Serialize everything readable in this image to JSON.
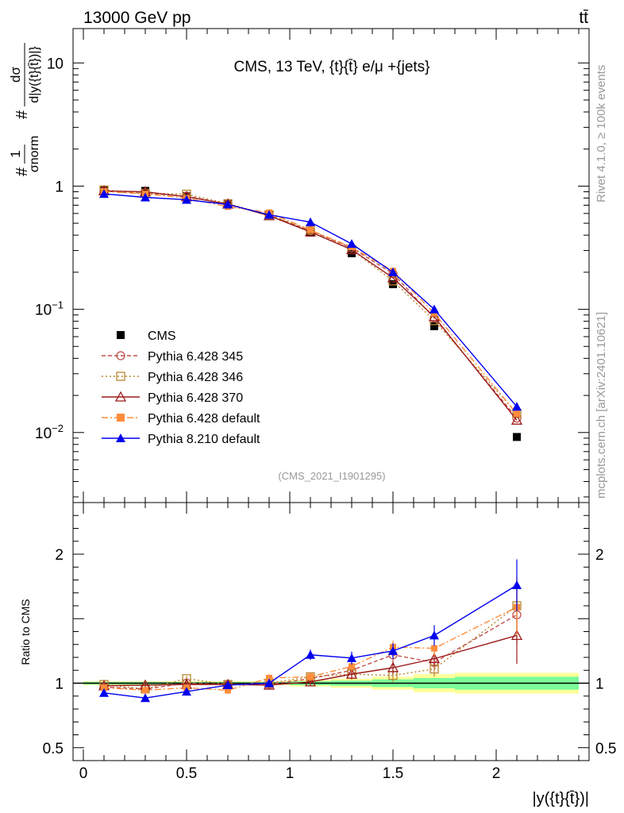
{
  "header": {
    "energy_label": "13000 GeV pp",
    "process_label": "tt̄"
  },
  "side_labels": {
    "rivet": "Rivet 4.1.0, ≥ 100k events",
    "mcplots": "mcplots.cern.ch [arXiv:2401.10621]"
  },
  "colors": {
    "cms": "#000000",
    "p345": "#c0504d",
    "p346": "#b8862f",
    "p370": "#9b1b1b",
    "p6def": "#ff8c3a",
    "p8": "#0000ee",
    "band_inner": "#7cfc9a",
    "band_outer": "#ffff99"
  },
  "chart_data": [
    {
      "type": "line",
      "panel": "main",
      "title": "CMS, 13 TeV, {t}{t̄} e/μ +{jets}",
      "analysis_id": "(CMS_2021_I1901295)",
      "ylabel_prefix": "#",
      "ylabel_frac_num": "1",
      "ylabel_frac_den": "σnorm",
      "ylabel_mid": "#",
      "ylabel_frac2_num": "dσ",
      "ylabel_frac2_den": "d|y({t}{t̄})|}",
      "yscale": "log",
      "ylim": [
        0.0027,
        19
      ],
      "xlim": [
        -0.05,
        2.45
      ],
      "y_tick_labels": [
        "10",
        "1",
        "10−1",
        "10−2"
      ],
      "x": [
        0.1,
        0.3,
        0.5,
        0.7,
        0.9,
        1.1,
        1.3,
        1.5,
        1.7,
        2.1
      ],
      "series": [
        {
          "name": "CMS",
          "key": "cms",
          "marker": "square-filled",
          "values": [
            0.935,
            0.915,
            0.83,
            0.72,
            0.585,
            0.42,
            0.285,
            0.16,
            0.073,
            0.0092
          ]
        },
        {
          "name": "Pythia 6.428 345",
          "key": "p345",
          "marker": "circle-open",
          "dash": "5,3",
          "values": [
            0.91,
            0.875,
            0.83,
            0.715,
            0.58,
            0.435,
            0.315,
            0.195,
            0.085,
            0.0131
          ]
        },
        {
          "name": "Pythia 6.428 346",
          "key": "p346",
          "marker": "square-open",
          "dash": "2,3",
          "values": [
            0.93,
            0.875,
            0.86,
            0.72,
            0.585,
            0.44,
            0.305,
            0.17,
            0.081,
            0.0143
          ]
        },
        {
          "name": "Pythia 6.428 370",
          "key": "p370",
          "marker": "triangle-open",
          "dash": "",
          "values": [
            0.915,
            0.9,
            0.82,
            0.715,
            0.575,
            0.425,
            0.305,
            0.18,
            0.087,
            0.0126
          ]
        },
        {
          "name": "Pythia 6.428 default",
          "key": "p6def",
          "marker": "square-filled",
          "dash": "8,3,2,3",
          "values": [
            0.905,
            0.865,
            0.8,
            0.68,
            0.61,
            0.44,
            0.32,
            0.205,
            0.093,
            0.0142
          ]
        },
        {
          "name": "Pythia 8.210 default",
          "key": "p8",
          "marker": "triangle-filled",
          "dash": "",
          "values": [
            0.865,
            0.81,
            0.775,
            0.71,
            0.585,
            0.51,
            0.34,
            0.2,
            0.1,
            0.0162
          ]
        }
      ]
    },
    {
      "type": "line",
      "panel": "ratio",
      "ylabel": "Ratio to CMS",
      "xlabel": "|y({t}{t̄})|",
      "ylim": [
        0.4,
        2.4
      ],
      "xlim": [
        -0.05,
        2.45
      ],
      "y_ticks": [
        0.5,
        1,
        2
      ],
      "y_tick_labels": [
        "0.5",
        "1",
        "2"
      ],
      "x_ticks": [
        0,
        0.5,
        1,
        1.5,
        2
      ],
      "x_tick_labels": [
        "0",
        "0.5",
        "1",
        "1.5",
        "2"
      ],
      "x": [
        0.1,
        0.3,
        0.5,
        0.7,
        0.9,
        1.1,
        1.3,
        1.5,
        1.7,
        2.1
      ],
      "uncertainty_band": {
        "edges": [
          0,
          0.2,
          0.4,
          0.6,
          0.8,
          1.0,
          1.2,
          1.4,
          1.6,
          1.8,
          2.4
        ],
        "inner": [
          0.01,
          0.01,
          0.01,
          0.01,
          0.01,
          0.015,
          0.02,
          0.03,
          0.04,
          0.05
        ],
        "outer": [
          0.015,
          0.015,
          0.015,
          0.015,
          0.015,
          0.025,
          0.035,
          0.05,
          0.07,
          0.08
        ]
      },
      "series": [
        {
          "name": "Pythia 6.428 345",
          "key": "p345",
          "marker": "circle-open",
          "dash": "5,3",
          "values": [
            0.97,
            0.955,
            1.0,
            0.99,
            0.99,
            1.035,
            1.1,
            1.22,
            1.16,
            1.53
          ],
          "err": [
            0.02,
            0.02,
            0.02,
            0.02,
            0.02,
            0.03,
            0.04,
            0.05,
            0.06,
            0.22
          ]
        },
        {
          "name": "Pythia 6.428 346",
          "key": "p346",
          "marker": "square-open",
          "dash": "2,3",
          "values": [
            0.99,
            0.955,
            1.035,
            0.99,
            1.0,
            1.05,
            1.07,
            1.06,
            1.11,
            1.6
          ],
          "err": [
            0.02,
            0.02,
            0.02,
            0.02,
            0.02,
            0.03,
            0.04,
            0.05,
            0.06,
            0.22
          ]
        },
        {
          "name": "Pythia 6.428 370",
          "key": "p370",
          "marker": "triangle-open",
          "dash": "",
          "values": [
            0.98,
            0.985,
            0.99,
            0.99,
            0.985,
            1.01,
            1.07,
            1.12,
            1.19,
            1.37
          ],
          "err": [
            0.02,
            0.02,
            0.02,
            0.02,
            0.02,
            0.03,
            0.04,
            0.05,
            0.06,
            0.22
          ]
        },
        {
          "name": "Pythia 6.428 default",
          "key": "p6def",
          "marker": "square-filled",
          "dash": "8,3,2,3",
          "values": [
            0.965,
            0.945,
            0.965,
            0.945,
            1.04,
            1.05,
            1.13,
            1.28,
            1.27,
            1.59
          ],
          "err": [
            0.02,
            0.02,
            0.02,
            0.03,
            0.03,
            0.03,
            0.04,
            0.05,
            0.06,
            0.22
          ]
        },
        {
          "name": "Pythia 8.210 default",
          "key": "p8",
          "marker": "triangle-filled",
          "dash": "",
          "values": [
            0.925,
            0.885,
            0.935,
            0.985,
            1.0,
            1.22,
            1.195,
            1.25,
            1.37,
            1.76
          ],
          "err": [
            0.02,
            0.02,
            0.02,
            0.02,
            0.02,
            0.04,
            0.05,
            0.06,
            0.08,
            0.2
          ]
        }
      ]
    }
  ]
}
